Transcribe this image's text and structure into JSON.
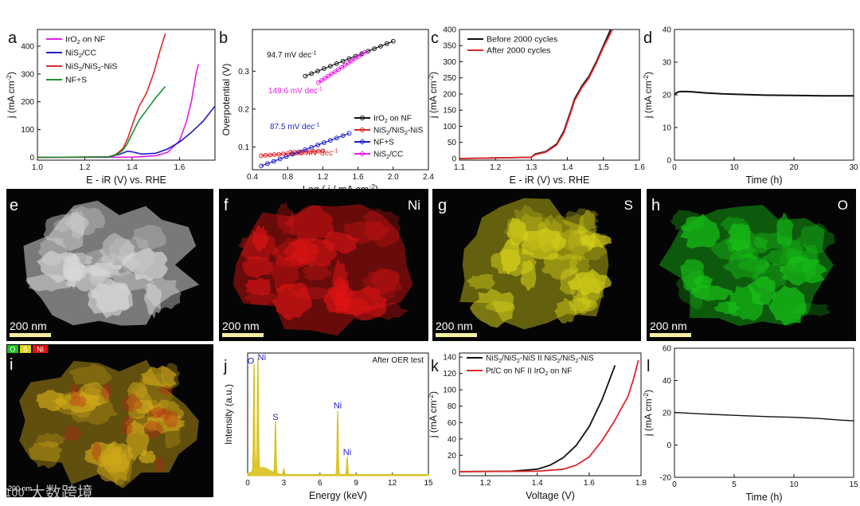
{
  "chart_data": [
    {
      "panel": "a",
      "type": "line",
      "xlabel": "E - iR (V) vs. RHE",
      "ylabel": "j (mA cm-2)",
      "xlim": [
        1.0,
        1.75
      ],
      "ylim": [
        -10,
        460
      ],
      "xticks": [
        1.0,
        1.2,
        1.4,
        1.6
      ],
      "yticks": [
        0,
        100,
        200,
        300,
        400
      ],
      "legend_position": "top-left",
      "series": [
        {
          "name": "IrO2 on NF",
          "color": "#e61ce6",
          "x": [
            1.0,
            1.4,
            1.5,
            1.55,
            1.6,
            1.63,
            1.65,
            1.66,
            1.67,
            1.68
          ],
          "y": [
            0,
            1,
            6,
            18,
            60,
            130,
            200,
            250,
            300,
            335
          ]
        },
        {
          "name": "NiS2/CC",
          "color": "#1c1ccf",
          "x": [
            1.0,
            1.3,
            1.35,
            1.38,
            1.4,
            1.44,
            1.5,
            1.55,
            1.6,
            1.65,
            1.7,
            1.75
          ],
          "y": [
            0,
            1,
            12,
            22,
            20,
            12,
            15,
            30,
            55,
            90,
            130,
            185
          ]
        },
        {
          "name": "NiS2/NiS2-NiS",
          "color": "#e0262a",
          "x": [
            1.0,
            1.3,
            1.33,
            1.36,
            1.38,
            1.41,
            1.43,
            1.46,
            1.49,
            1.52,
            1.54
          ],
          "y": [
            0,
            2,
            10,
            30,
            65,
            140,
            185,
            230,
            300,
            390,
            445
          ]
        },
        {
          "name": "NF+S",
          "color": "#1c8f2c",
          "x": [
            1.0,
            1.3,
            1.33,
            1.36,
            1.38,
            1.4,
            1.43,
            1.47,
            1.5,
            1.54
          ],
          "y": [
            0,
            2,
            8,
            25,
            50,
            85,
            135,
            180,
            215,
            255
          ]
        }
      ]
    },
    {
      "panel": "b",
      "type": "line",
      "xlabel": "Log ( j / mA cm-2)",
      "ylabel": "Overpotential (V)",
      "xlim": [
        0.4,
        2.4
      ],
      "ylim": [
        0.04,
        0.41
      ],
      "xticks": [
        0.4,
        0.8,
        1.2,
        1.6,
        2.0,
        2.4
      ],
      "yticks": [
        0.1,
        0.2,
        0.3
      ],
      "legend_position": "bottom-right",
      "series": [
        {
          "name": "IrO2 on NF",
          "color": "#111111",
          "x": [
            1.0,
            2.0
          ],
          "y": [
            0.287,
            0.379
          ]
        },
        {
          "name": "NiS2/NiS2-NiS",
          "color": "#e0262a",
          "x": [
            0.5,
            1.2
          ],
          "y": [
            0.077,
            0.09
          ]
        },
        {
          "name": "NF+S",
          "color": "#1c1ccf",
          "x": [
            0.5,
            1.5
          ],
          "y": [
            0.05,
            0.136
          ]
        },
        {
          "name": "NiS2/CC",
          "color": "#e61ce6",
          "x": [
            1.15,
            1.68
          ],
          "y": [
            0.27,
            0.35
          ]
        }
      ],
      "annotations": [
        {
          "text": "94.7 mV dec-1",
          "color": "#111111"
        },
        {
          "text": "149.6 mV dec-1",
          "color": "#e61ce6"
        },
        {
          "text": "87.5 mV dec-1",
          "color": "#1c1ccf"
        },
        {
          "text": "20.5 mV dec-1",
          "color": "#e0262a"
        }
      ]
    },
    {
      "panel": "c",
      "type": "line",
      "xlabel": "E - iR (V) vs. RHE",
      "ylabel": "j (mA cm-2)",
      "xlim": [
        1.1,
        1.6
      ],
      "ylim": [
        -5,
        400
      ],
      "xticks": [
        1.1,
        1.2,
        1.3,
        1.4,
        1.5,
        1.6
      ],
      "yticks": [
        0,
        50,
        100,
        150,
        200,
        250,
        300,
        350,
        400
      ],
      "legend_position": "top-left",
      "series": [
        {
          "name": "Before 2000 cycles",
          "color": "#111111",
          "x": [
            1.1,
            1.3,
            1.31,
            1.34,
            1.37,
            1.39,
            1.41,
            1.42,
            1.44,
            1.46,
            1.48,
            1.5,
            1.52
          ],
          "y": [
            0,
            4,
            14,
            22,
            45,
            85,
            150,
            185,
            225,
            255,
            300,
            350,
            400
          ]
        },
        {
          "name": "After 2000 cycles",
          "color": "#e0262a",
          "x": [
            1.1,
            1.3,
            1.31,
            1.34,
            1.37,
            1.39,
            1.41,
            1.42,
            1.44,
            1.46,
            1.48,
            1.5,
            1.525
          ],
          "y": [
            0,
            4,
            12,
            20,
            42,
            80,
            145,
            180,
            220,
            250,
            295,
            345,
            400
          ]
        }
      ]
    },
    {
      "panel": "d",
      "type": "line",
      "xlabel": "Time (h)",
      "ylabel": "j (mA cm-2)",
      "xlim": [
        0,
        30
      ],
      "ylim": [
        0,
        40
      ],
      "xticks": [
        0,
        10,
        20,
        30
      ],
      "yticks": [
        0,
        10,
        20,
        30,
        40
      ],
      "series": [
        {
          "name": "stability",
          "color": "#111111",
          "x": [
            0,
            0.5,
            1,
            2,
            3,
            5,
            8,
            10,
            15,
            20,
            25,
            30
          ],
          "y": [
            20.2,
            20.8,
            21.0,
            21.0,
            20.9,
            20.6,
            20.3,
            20.2,
            19.9,
            19.8,
            19.7,
            19.7
          ]
        }
      ]
    },
    {
      "panel": "j",
      "type": "line",
      "xlabel": "Energy (keV)",
      "ylabel": "Intensity (a.u.)",
      "xlim": [
        0,
        15
      ],
      "xticks": [
        0,
        3,
        6,
        9,
        12,
        15
      ],
      "series": [
        {
          "name": "EDS",
          "color": "#d8c21c",
          "peaks": [
            {
              "energy": 0.53,
              "height": 0.93,
              "label": "O"
            },
            {
              "energy": 0.85,
              "height": 0.96,
              "label": "Ni"
            },
            {
              "energy": 2.31,
              "height": 0.45,
              "label": "S"
            },
            {
              "energy": 3.0,
              "height": 0.05,
              "label": ""
            },
            {
              "energy": 7.47,
              "height": 0.55,
              "label": "Ni"
            },
            {
              "energy": 8.26,
              "height": 0.15,
              "label": "Ni"
            }
          ]
        }
      ],
      "annotations": [
        {
          "text": "After OER test"
        }
      ]
    },
    {
      "panel": "k",
      "type": "line",
      "xlabel": "Voltage (V)",
      "ylabel": "j (mA cm-2)",
      "xlim": [
        1.1,
        1.8
      ],
      "ylim": [
        -5,
        145
      ],
      "xticks": [
        1.2,
        1.4,
        1.6,
        1.8
      ],
      "yticks": [
        0,
        20,
        40,
        60,
        80,
        100,
        120,
        140
      ],
      "legend_position": "top-left",
      "series": [
        {
          "name": "NiS2/NiS2-NiS II NiS2/NiS2-NiS",
          "color": "#111111",
          "x": [
            1.1,
            1.3,
            1.4,
            1.45,
            1.5,
            1.55,
            1.6,
            1.65,
            1.7
          ],
          "y": [
            0,
            0.5,
            3,
            8,
            17,
            32,
            55,
            88,
            130
          ]
        },
        {
          "name": "Pt/C on NF II IrO2 on NF",
          "color": "#e0262a",
          "x": [
            1.1,
            1.4,
            1.5,
            1.55,
            1.6,
            1.65,
            1.7,
            1.72,
            1.75,
            1.77,
            1.79
          ],
          "y": [
            0,
            0.5,
            3,
            8,
            18,
            38,
            63,
            75,
            92,
            112,
            136
          ]
        }
      ]
    },
    {
      "panel": "l",
      "type": "line",
      "xlabel": "Time (h)",
      "ylabel": "j (mA cm-2)",
      "xlim": [
        0,
        15
      ],
      "ylim": [
        -20,
        60
      ],
      "xticks": [
        0,
        5,
        10,
        15
      ],
      "yticks": [
        -20,
        0,
        20,
        40,
        60
      ],
      "series": [
        {
          "name": "stability",
          "color": "#111111",
          "x": [
            0,
            2,
            4,
            6,
            8,
            10,
            12,
            14,
            15
          ],
          "y": [
            20.2,
            19.4,
            18.7,
            18.1,
            17.6,
            17.2,
            16.5,
            15.4,
            15.0
          ]
        }
      ]
    }
  ],
  "maps": [
    {
      "panel": "e",
      "element": "",
      "scalebar": "200 nm",
      "color": "#d8d8d8"
    },
    {
      "panel": "f",
      "element": "Ni",
      "scalebar": "200 nm",
      "color": "#e01414"
    },
    {
      "panel": "g",
      "element": "S",
      "scalebar": "200 nm",
      "color": "#d8d21a"
    },
    {
      "panel": "h",
      "element": "O",
      "scalebar": "200 nm",
      "color": "#18c418"
    },
    {
      "panel": "i",
      "element": "",
      "scalebar": "200 nm",
      "color": "#d2aa1a",
      "legend": [
        {
          "text": "O",
          "color": "#18c418"
        },
        {
          "text": "S",
          "color": "#e0d21a"
        },
        {
          "text": "Ni",
          "color": "#e01414"
        }
      ]
    }
  ],
  "watermark": {
    "symbol": "100",
    "text": "大数跨境"
  }
}
